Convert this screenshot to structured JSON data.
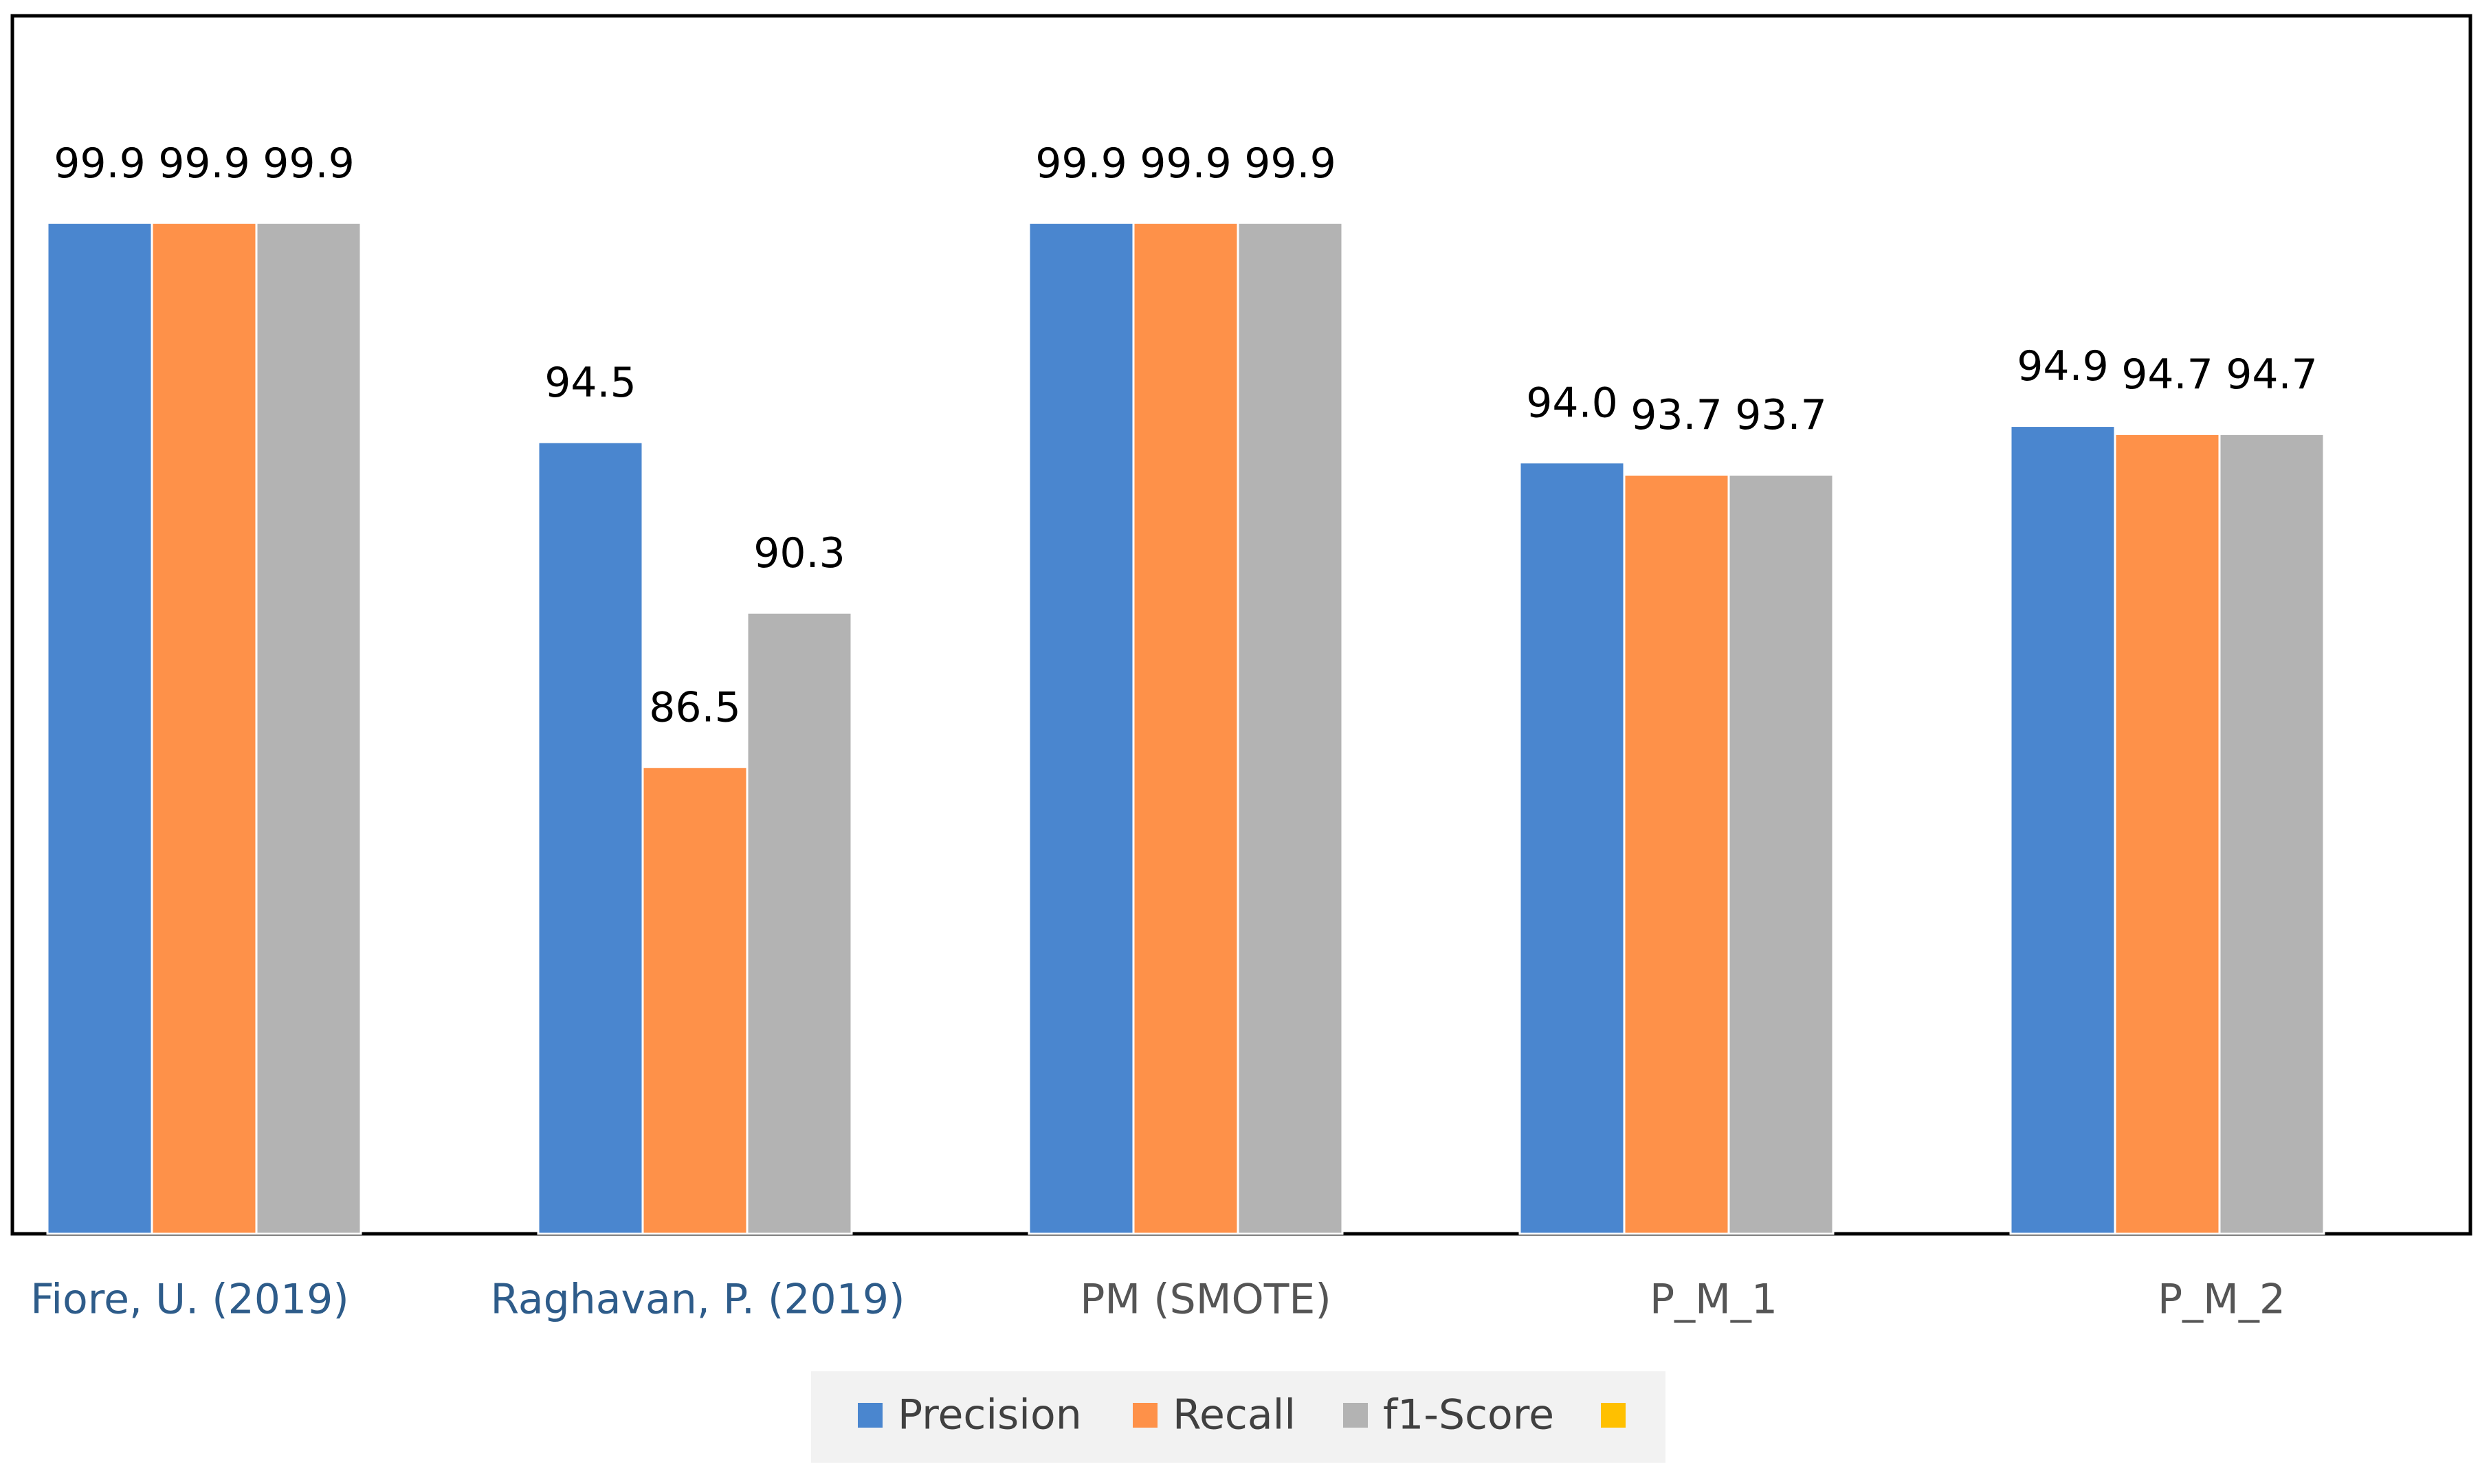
{
  "chart_data": {
    "type": "bar",
    "categories": [
      "Fiore, U. (2019)",
      "Raghavan, P. (2019)",
      "PM (SMOTE)",
      "P_M_1",
      "P_M_2"
    ],
    "series": [
      {
        "name": "Precision",
        "color": "#4a86cf",
        "values": [
          99.9,
          94.5,
          99.9,
          94,
          94.9
        ],
        "value_labels": [
          "99.9",
          "94.5",
          "99.9",
          "94.0",
          "94.9"
        ]
      },
      {
        "name": "Recall",
        "color": "#fe9149",
        "values": [
          99.9,
          86.5,
          99.9,
          93.7,
          94.7
        ]
      },
      {
        "name": "f1-Score",
        "color": "#b3b3b3",
        "values": [
          99.9,
          90.3,
          99.9,
          93.7,
          94.7
        ]
      },
      {
        "name": null,
        "color": "#ffc000",
        "values": [
          null,
          null,
          null,
          null,
          null
        ]
      }
    ],
    "ylim": [
      75,
      105
    ]
  }
}
